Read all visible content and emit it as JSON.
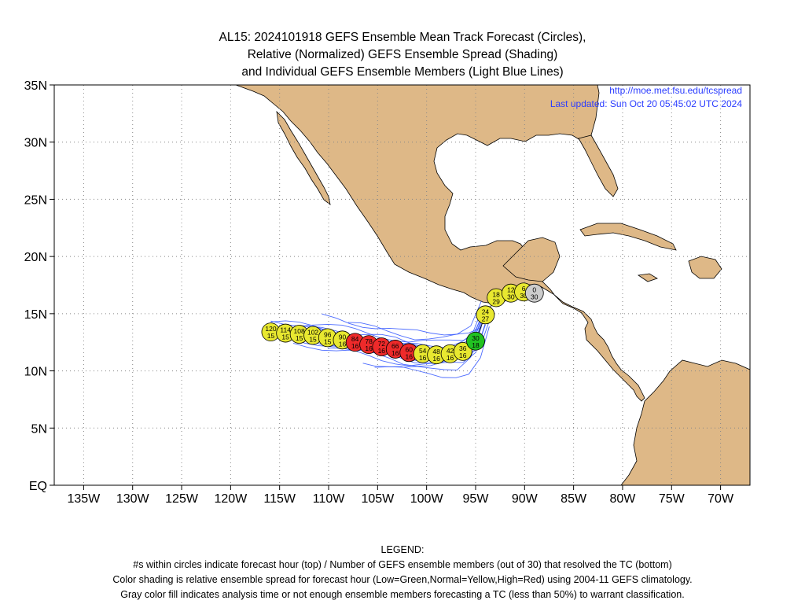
{
  "title": {
    "line1": "AL15: 2024101918 GEFS Ensemble Mean Track Forecast (Circles),",
    "line2": "Relative (Normalized) GEFS Ensemble Spread (Shading)",
    "line3": "and Individual GEFS Ensemble Members (Light Blue Lines)"
  },
  "credit": {
    "url": "http://moe.met.fsu.edu/tcspread",
    "updated": "Last updated: Sun Oct 20 05:45:02 UTC 2024"
  },
  "axes": {
    "lat_labels": [
      "35N",
      "30N",
      "25N",
      "20N",
      "15N",
      "10N",
      "5N",
      "EQ"
    ],
    "lat_values": [
      35,
      30,
      25,
      20,
      15,
      10,
      5,
      0
    ],
    "lon_labels": [
      "135W",
      "130W",
      "125W",
      "120W",
      "115W",
      "110W",
      "105W",
      "100W",
      "95W",
      "90W",
      "85W",
      "80W",
      "75W",
      "70W"
    ],
    "lon_values": [
      -135,
      -130,
      -125,
      -120,
      -115,
      -110,
      -105,
      -100,
      -95,
      -90,
      -85,
      -80,
      -75,
      -70
    ],
    "lon_range": [
      -138,
      -67
    ],
    "lat_range": [
      0,
      35
    ],
    "grid": "dotted"
  },
  "colors": {
    "land": "#deb887",
    "ocean": "#ffffff",
    "member_line": "#3a5cff",
    "low": "#22c222",
    "normal": "#e8e830",
    "high": "#ee2a2a",
    "gray": "#cccccc"
  },
  "mean_track": [
    {
      "hour": "0",
      "members": "30",
      "lat": 16.8,
      "lon": -89.0,
      "spread": "gray"
    },
    {
      "hour": "6",
      "members": "30",
      "lat": 16.9,
      "lon": -90.1,
      "spread": "normal"
    },
    {
      "hour": "12",
      "members": "30",
      "lat": 16.8,
      "lon": -91.4,
      "spread": "normal"
    },
    {
      "hour": "18",
      "members": "29",
      "lat": 16.4,
      "lon": -92.9,
      "spread": "normal"
    },
    {
      "hour": "24",
      "members": "27",
      "lat": 14.9,
      "lon": -94.0,
      "spread": "normal"
    },
    {
      "hour": "30",
      "members": "18",
      "lat": 12.6,
      "lon": -95.0,
      "spread": "low"
    },
    {
      "hour": "36",
      "members": "16",
      "lat": 11.7,
      "lon": -96.3,
      "spread": "normal"
    },
    {
      "hour": "42",
      "members": "16",
      "lat": 11.5,
      "lon": -97.6,
      "spread": "normal"
    },
    {
      "hour": "48",
      "members": "16",
      "lat": 11.4,
      "lon": -99.0,
      "spread": "normal"
    },
    {
      "hour": "54",
      "members": "16",
      "lat": 11.5,
      "lon": -100.4,
      "spread": "normal"
    },
    {
      "hour": "60",
      "members": "16",
      "lat": 11.6,
      "lon": -101.8,
      "spread": "high"
    },
    {
      "hour": "66",
      "members": "16",
      "lat": 11.9,
      "lon": -103.2,
      "spread": "high"
    },
    {
      "hour": "72",
      "members": "16",
      "lat": 12.1,
      "lon": -104.6,
      "spread": "high"
    },
    {
      "hour": "78",
      "members": "16",
      "lat": 12.3,
      "lon": -105.9,
      "spread": "high"
    },
    {
      "hour": "84",
      "members": "16",
      "lat": 12.5,
      "lon": -107.3,
      "spread": "high"
    },
    {
      "hour": "90",
      "members": "16",
      "lat": 12.7,
      "lon": -108.6,
      "spread": "normal"
    },
    {
      "hour": "96",
      "members": "15",
      "lat": 12.9,
      "lon": -110.1,
      "spread": "normal"
    },
    {
      "hour": "102",
      "members": "15",
      "lat": 13.1,
      "lon": -111.6,
      "spread": "normal"
    },
    {
      "hour": "108",
      "members": "15",
      "lat": 13.2,
      "lon": -113.0,
      "spread": "normal"
    },
    {
      "hour": "114",
      "members": "15",
      "lat": 13.3,
      "lon": -114.4,
      "spread": "normal"
    },
    {
      "hour": "120",
      "members": "15",
      "lat": 13.4,
      "lon": -115.9,
      "spread": "normal"
    }
  ],
  "legend": {
    "heading": "LEGEND:",
    "line1": "#s within circles indicate forecast hour (top) / Number of GEFS ensemble members (out of 30) that resolved the TC (bottom)",
    "line2": "Color shading is relative ensemble spread for forecast hour (Low=Green,Normal=Yellow,High=Red) using 2004-11 GEFS climatology.",
    "line3": "Gray color fill indicates analysis time or not enough ensemble members forecasting a TC (less than 50%) to warrant classification."
  }
}
